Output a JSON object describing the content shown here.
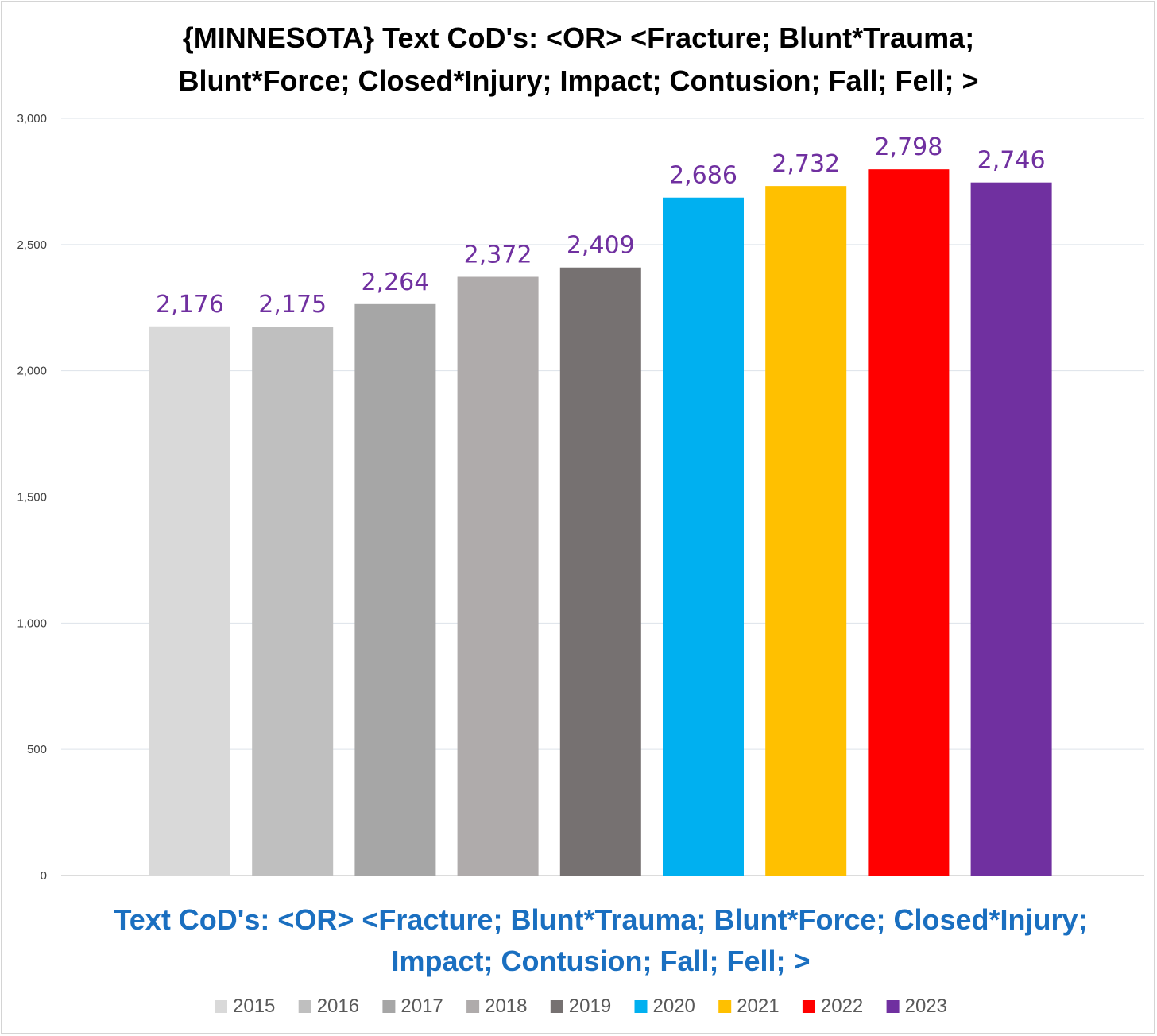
{
  "chart_data": {
    "type": "bar",
    "title_lines": [
      "{MINNESOTA}  Text CoD's: <OR> <Fracture; Blunt*Trauma;",
      "Blunt*Force; Closed*Injury; Impact; Contusion; Fall; Fell; >"
    ],
    "xlabel_lines": [
      "Text CoD's: <OR> <Fracture; Blunt*Trauma; Blunt*Force; Closed*Injury;",
      "Impact; Contusion; Fall; Fell; >"
    ],
    "ylabel": "",
    "ylim": [
      0,
      3000
    ],
    "yticks": [
      0,
      500,
      1000,
      1500,
      2000,
      2500,
      3000
    ],
    "ytick_labels": [
      "0",
      "500",
      "1,000",
      "1,500",
      "2,000",
      "2,500",
      "3,000"
    ],
    "grid": true,
    "legend_position": "bottom",
    "series": [
      {
        "name": "2015",
        "value": 2176,
        "label": "2,176",
        "color": "#d9d9d9"
      },
      {
        "name": "2016",
        "value": 2175,
        "label": "2,175",
        "color": "#bfbfbf"
      },
      {
        "name": "2017",
        "value": 2264,
        "label": "2,264",
        "color": "#a6a6a6"
      },
      {
        "name": "2018",
        "value": 2372,
        "label": "2,372",
        "color": "#afabab"
      },
      {
        "name": "2019",
        "value": 2409,
        "label": "2,409",
        "color": "#767171"
      },
      {
        "name": "2020",
        "value": 2686,
        "label": "2,686",
        "color": "#00b0f0"
      },
      {
        "name": "2021",
        "value": 2732,
        "label": "2,732",
        "color": "#ffc000"
      },
      {
        "name": "2022",
        "value": 2798,
        "label": "2,798",
        "color": "#ff0000"
      },
      {
        "name": "2023",
        "value": 2746,
        "label": "2,746",
        "color": "#7030a0"
      }
    ],
    "data_label_color": "#7030a0",
    "xlabel_color": "#1a6fc0"
  }
}
